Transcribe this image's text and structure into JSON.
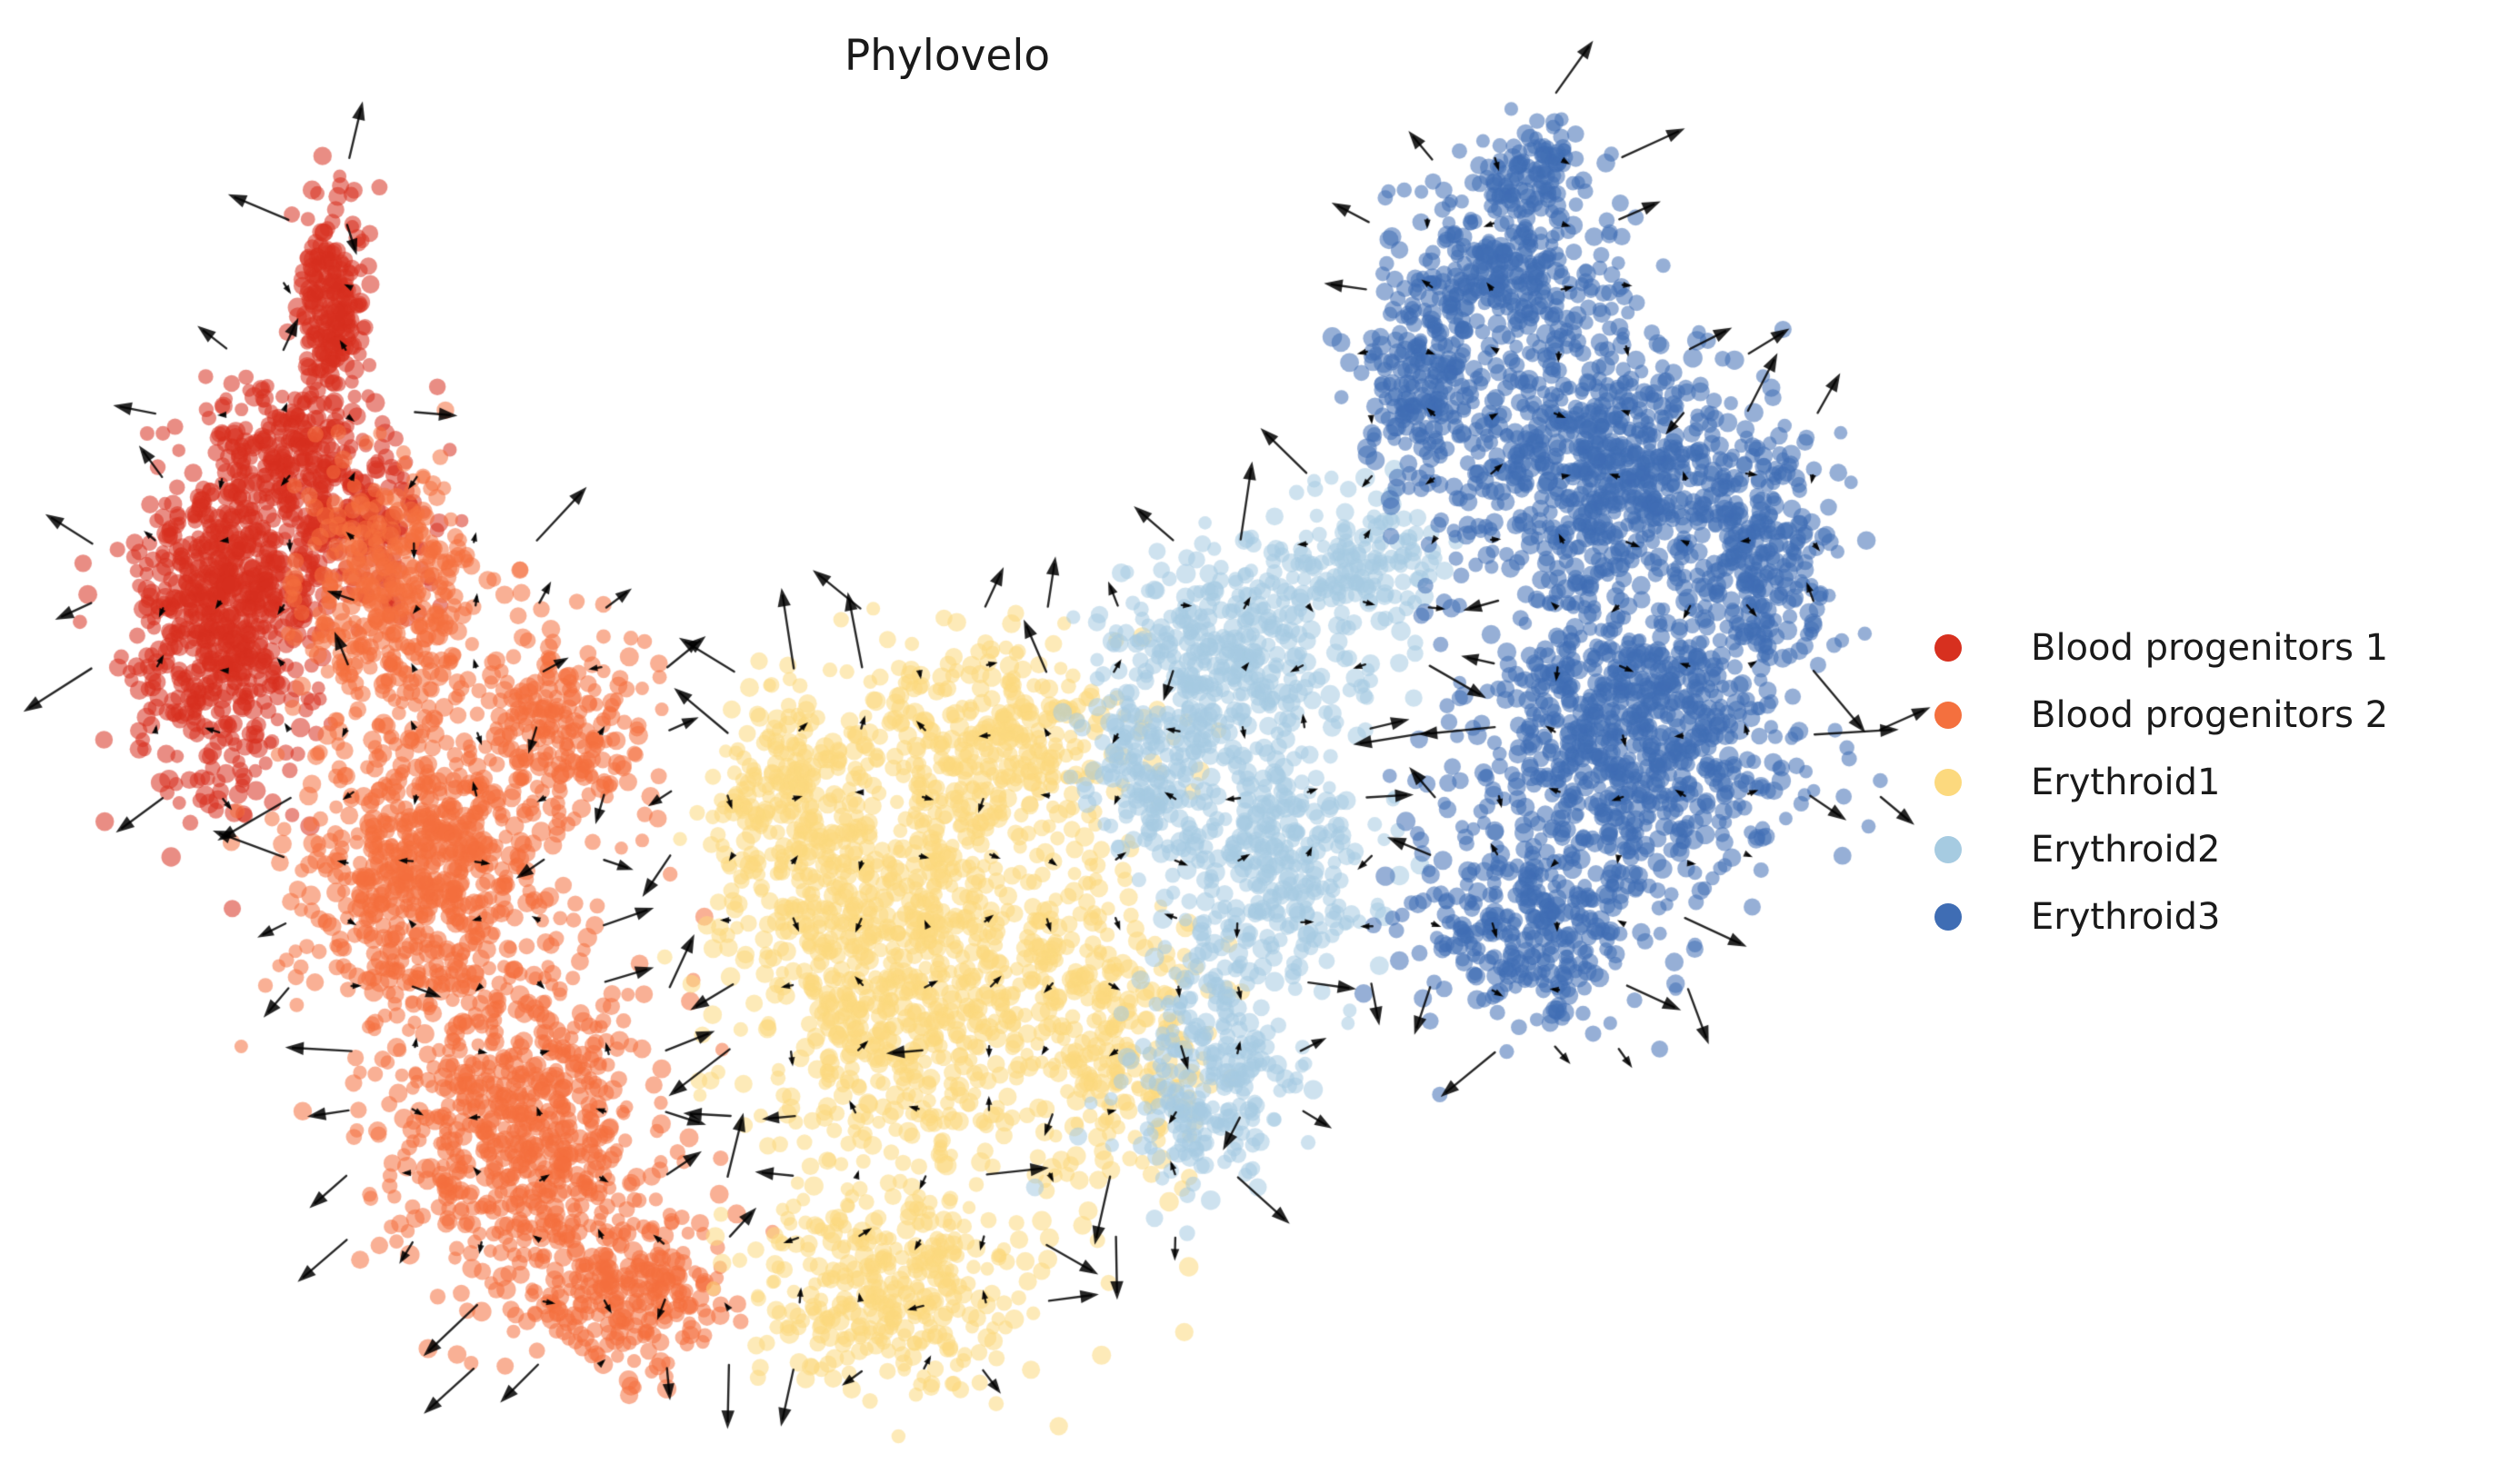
{
  "chart_data": {
    "type": "scatter",
    "title": "Phylovelo",
    "xlabel": "",
    "ylabel": "",
    "axes_visible": false,
    "grid": false,
    "background": "#ffffff",
    "legend_position": "center right",
    "legend": [
      {
        "label": "Blood progenitors 1",
        "color": "#d7301f"
      },
      {
        "label": "Blood progenitors 2",
        "color": "#f4703e"
      },
      {
        "label": "Erythroid1",
        "color": "#fcd97e"
      },
      {
        "label": "Erythroid2",
        "color": "#a6cbe1"
      },
      {
        "label": "Erythroid3",
        "color": "#3f6db4"
      }
    ],
    "series": [
      {
        "name": "Blood progenitors 1",
        "color": "#d7301f",
        "marker_radius": 9,
        "opacity": 0.55,
        "blobs": [
          {
            "cx": 365,
            "cy": 335,
            "rx": 40,
            "ry": 110,
            "n": 220
          },
          {
            "cx": 315,
            "cy": 490,
            "rx": 65,
            "ry": 75,
            "n": 170
          },
          {
            "cx": 245,
            "cy": 680,
            "rx": 100,
            "ry": 185,
            "n": 700
          },
          {
            "cx": 390,
            "cy": 580,
            "rx": 85,
            "ry": 110,
            "n": 220
          }
        ]
      },
      {
        "name": "Blood progenitors 2",
        "color": "#f4703e",
        "marker_radius": 9,
        "opacity": 0.55,
        "blobs": [
          {
            "cx": 430,
            "cy": 660,
            "rx": 100,
            "ry": 140,
            "n": 380
          },
          {
            "cx": 470,
            "cy": 950,
            "rx": 135,
            "ry": 185,
            "n": 650
          },
          {
            "cx": 575,
            "cy": 1240,
            "rx": 150,
            "ry": 180,
            "n": 650
          },
          {
            "cx": 690,
            "cy": 1420,
            "rx": 115,
            "ry": 90,
            "n": 260
          },
          {
            "cx": 620,
            "cy": 810,
            "rx": 85,
            "ry": 120,
            "n": 220
          }
        ]
      },
      {
        "name": "Erythroid1",
        "color": "#fcd97e",
        "marker_radius": 9,
        "opacity": 0.55,
        "blobs": [
          {
            "cx": 1010,
            "cy": 1080,
            "rx": 190,
            "ry": 240,
            "n": 900
          },
          {
            "cx": 1090,
            "cy": 810,
            "rx": 150,
            "ry": 110,
            "n": 320
          },
          {
            "cx": 980,
            "cy": 1420,
            "rx": 150,
            "ry": 110,
            "n": 330
          },
          {
            "cx": 1230,
            "cy": 1130,
            "rx": 100,
            "ry": 170,
            "n": 260
          },
          {
            "cx": 870,
            "cy": 900,
            "rx": 90,
            "ry": 140,
            "n": 260
          }
        ]
      },
      {
        "name": "Erythroid2",
        "color": "#a6cbe1",
        "marker_radius": 9,
        "opacity": 0.55,
        "blobs": [
          {
            "cx": 1350,
            "cy": 720,
            "rx": 130,
            "ry": 115,
            "n": 320
          },
          {
            "cx": 1390,
            "cy": 950,
            "rx": 115,
            "ry": 140,
            "n": 340
          },
          {
            "cx": 1330,
            "cy": 1180,
            "rx": 100,
            "ry": 120,
            "n": 240
          },
          {
            "cx": 1500,
            "cy": 620,
            "rx": 95,
            "ry": 85,
            "n": 160
          },
          {
            "cx": 1270,
            "cy": 850,
            "rx": 80,
            "ry": 90,
            "n": 160
          }
        ]
      },
      {
        "name": "Erythroid3",
        "color": "#3f6db4",
        "marker_radius": 9,
        "opacity": 0.55,
        "blobs": [
          {
            "cx": 1660,
            "cy": 300,
            "rx": 125,
            "ry": 115,
            "n": 320
          },
          {
            "cx": 1690,
            "cy": 185,
            "rx": 65,
            "ry": 50,
            "n": 90
          },
          {
            "cx": 1760,
            "cy": 520,
            "rx": 175,
            "ry": 150,
            "n": 700
          },
          {
            "cx": 1790,
            "cy": 820,
            "rx": 190,
            "ry": 165,
            "n": 800
          },
          {
            "cx": 1935,
            "cy": 610,
            "rx": 85,
            "ry": 140,
            "n": 260
          },
          {
            "cx": 1680,
            "cy": 1020,
            "rx": 130,
            "ry": 110,
            "n": 300
          },
          {
            "cx": 1560,
            "cy": 430,
            "rx": 80,
            "ry": 110,
            "n": 200
          }
        ]
      }
    ],
    "velocity_field": {
      "color": "#000000",
      "opacity": 0.85,
      "grid_spacing": 70,
      "min_points_per_cell": 2,
      "interior_threshold": 12,
      "interior_length": [
        3,
        13
      ],
      "edge_length": [
        20,
        85
      ],
      "line_width": 2.4
    }
  }
}
